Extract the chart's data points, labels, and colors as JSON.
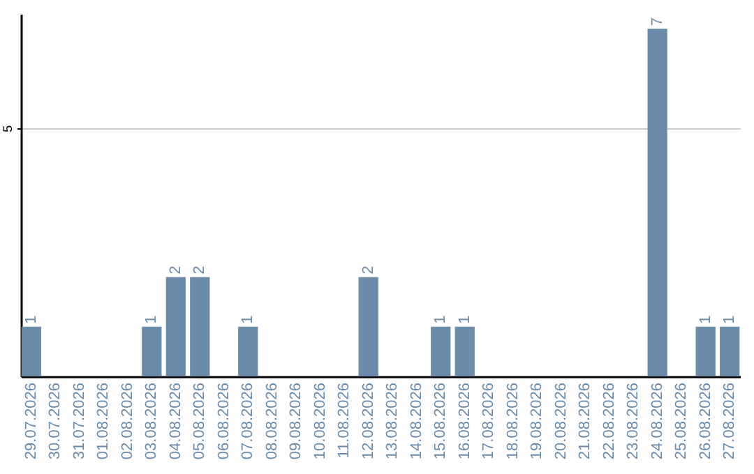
{
  "chart_data": {
    "type": "bar",
    "categories": [
      "29.07.2026",
      "30.07.2026",
      "31.07.2026",
      "01.08.2026",
      "02.08.2026",
      "03.08.2026",
      "04.08.2026",
      "05.08.2026",
      "06.08.2026",
      "07.08.2026",
      "08.08.2026",
      "09.08.2026",
      "10.08.2026",
      "11.08.2026",
      "12.08.2026",
      "13.08.2026",
      "14.08.2026",
      "15.08.2026",
      "16.08.2026",
      "17.08.2026",
      "18.08.2026",
      "19.08.2026",
      "20.08.2026",
      "21.08.2026",
      "22.08.2026",
      "23.08.2026",
      "24.08.2026",
      "25.08.2026",
      "26.08.2026",
      "27.08.2026"
    ],
    "values": [
      1,
      0,
      0,
      0,
      0,
      1,
      2,
      2,
      0,
      1,
      0,
      0,
      0,
      0,
      2,
      0,
      0,
      1,
      1,
      0,
      0,
      0,
      0,
      0,
      0,
      0,
      7,
      0,
      1,
      1
    ],
    "value_labels": [
      "1",
      null,
      null,
      null,
      null,
      "1",
      "2",
      "2",
      null,
      "1",
      null,
      null,
      null,
      null,
      "2",
      null,
      null,
      "1",
      "1",
      null,
      null,
      null,
      null,
      null,
      null,
      null,
      "7",
      null,
      "1",
      "1"
    ],
    "color": "#6a8caa",
    "ylim": [
      0,
      7.3
    ],
    "yticks": [
      5
    ],
    "grid": "y"
  }
}
